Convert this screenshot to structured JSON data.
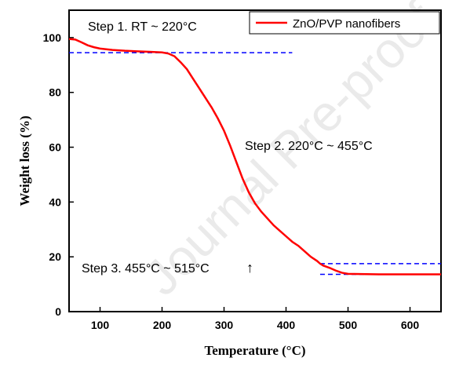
{
  "chart_data": {
    "type": "line",
    "xlabel": "Temperature (°C)",
    "ylabel": "Weight loss (%)",
    "xlim": [
      50,
      650
    ],
    "ylim": [
      0,
      110
    ],
    "xticks": [
      100,
      200,
      300,
      400,
      500,
      600
    ],
    "yticks": [
      0,
      20,
      40,
      60,
      80,
      100
    ],
    "grid": false,
    "legend_position": "top-right",
    "series": [
      {
        "name": "ZnO/PVP nanofibers",
        "color": "#ff0000",
        "x": [
          50,
          60,
          70,
          80,
          90,
          100,
          120,
          140,
          160,
          180,
          200,
          210,
          220,
          230,
          240,
          250,
          260,
          270,
          280,
          290,
          300,
          310,
          320,
          330,
          340,
          350,
          360,
          370,
          380,
          390,
          400,
          410,
          420,
          430,
          440,
          450,
          455,
          460,
          470,
          480,
          490,
          500,
          520,
          550,
          600,
          650
        ],
        "y": [
          99.5,
          99.3,
          98.3,
          97.2,
          96.5,
          96.0,
          95.5,
          95.2,
          95.0,
          94.8,
          94.6,
          94.2,
          93.2,
          91.0,
          88.5,
          85.0,
          81.5,
          78.0,
          74.5,
          70.5,
          66.0,
          60.5,
          54.5,
          48.5,
          43.5,
          39.5,
          36.5,
          34.0,
          31.5,
          29.5,
          27.5,
          25.5,
          24.0,
          22.0,
          20.0,
          18.5,
          17.5,
          16.8,
          16.0,
          15.0,
          14.2,
          13.8,
          13.7,
          13.6,
          13.6,
          13.6
        ]
      }
    ],
    "reference_lines": [
      {
        "y": 94.5,
        "x": [
          50,
          410
        ],
        "color": "#0000ff"
      },
      {
        "y": 17.5,
        "x": [
          455,
          650
        ],
        "color": "#0000ff"
      },
      {
        "y": 13.6,
        "x": [
          455,
          650
        ],
        "color": "#0000ff"
      }
    ],
    "annotations": [
      {
        "text": "Step 1. RT ~ 220°C"
      },
      {
        "text": "Step 2.  220°C ~ 455°C"
      },
      {
        "text": "Step 3.  455°C ~ 515°C"
      },
      {
        "text": "↑"
      }
    ],
    "watermark": "Journal Pre-proof"
  }
}
